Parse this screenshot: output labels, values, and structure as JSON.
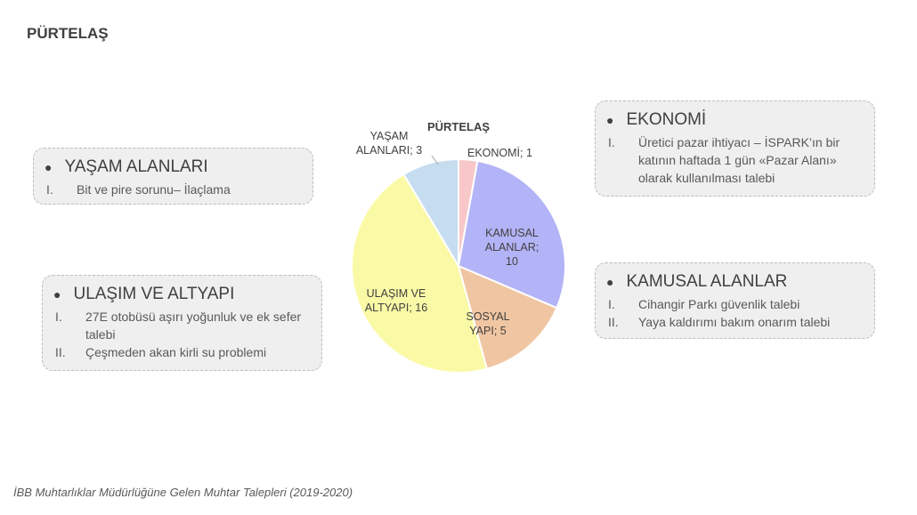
{
  "page": {
    "title": "PÜRTELAŞ",
    "footer": "İBB Muhtarlıklar Müdürlüğüne Gelen Muhtar Talepleri (2019-2020)"
  },
  "boxes": {
    "yasam": {
      "title": "YAŞAM ALANLARI",
      "items": [
        {
          "num": "I.",
          "text": "Bit ve pire sorunu– İlaçlama"
        }
      ]
    },
    "ulasim": {
      "title": "ULAŞIM VE ALTYAPI",
      "items": [
        {
          "num": "I.",
          "text": "27E otobüsü aşırı yoğunluk ve ek sefer talebi"
        },
        {
          "num": "II.",
          "text": "Çeşmeden  akan kirli su problemi"
        }
      ]
    },
    "ekonomi": {
      "title": "EKONOMİ",
      "items": [
        {
          "num": "I.",
          "text": "Üretici pazar ihtiyacı – İSPARK’ın bir katının haftada 1 gün «Pazar Alanı» olarak kullanılması talebi"
        }
      ]
    },
    "kamusal": {
      "title": "KAMUSAL ALANLAR",
      "items": [
        {
          "num": "I.",
          "text": "Cihangir Parkı güvenlik talebi"
        },
        {
          "num": "II.",
          "text": "Yaya kaldırımı bakım onarım talebi"
        }
      ]
    }
  },
  "chart_data": {
    "type": "pie",
    "title": "PÜRTELAŞ",
    "slices": [
      {
        "label": "EKONOMİ",
        "value": 1,
        "color": "#f8c8c8",
        "lines": [
          "EKONOMİ; 1"
        ]
      },
      {
        "label": "KAMUSAL ALANLAR",
        "value": 10,
        "color": "#b3b3f7",
        "lines": [
          "KAMUSAL",
          "ALANLAR;",
          "10"
        ]
      },
      {
        "label": "SOSYAL YAPI",
        "value": 5,
        "color": "#f0c6a2",
        "lines": [
          "SOSYAL",
          "YAPI; 5"
        ]
      },
      {
        "label": "ULAŞIM VE ALTYAPI",
        "value": 16,
        "color": "#fafaa6",
        "lines": [
          "ULAŞIM VE",
          "ALTYAPI; 16"
        ]
      },
      {
        "label": "YAŞAM ALANLARI",
        "value": 3,
        "color": "#c6dcef",
        "lines": [
          "YAŞAM",
          "ALANLARI; 3"
        ]
      }
    ]
  }
}
